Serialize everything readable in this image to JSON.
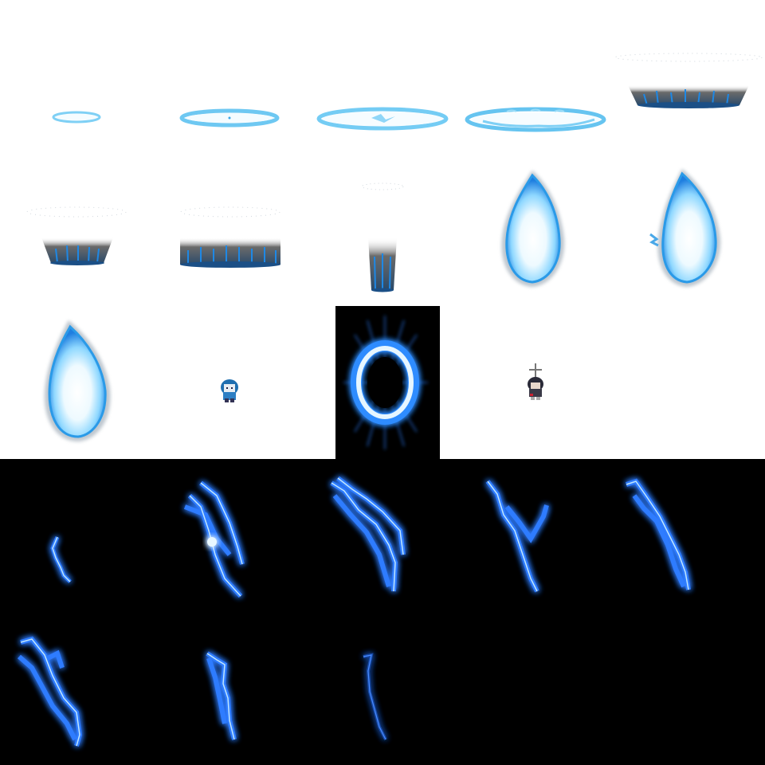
{
  "sheet": {
    "name": "blue-flame-effect-sprite-sheet",
    "colors": {
      "background_top": "#ffffff",
      "background_bottom": "#000000",
      "flame_core": "#f2fbff",
      "flame_mid": "#7fd6ff",
      "flame_edge": "#1a8cff",
      "smoke": "#6b6b6b",
      "lightning": "#2f7bff",
      "lightning_core": "#bfe6ff"
    },
    "frames": [
      {
        "id": "ring-small",
        "icon": "ground-ring-icon"
      },
      {
        "id": "ring-medium",
        "icon": "ground-ring-icon"
      },
      {
        "id": "ring-large",
        "icon": "ground-ring-icon"
      },
      {
        "id": "ring-wide",
        "icon": "ground-ring-icon"
      },
      {
        "id": "pillar-base-wide",
        "icon": "flame-pillar-icon"
      },
      {
        "id": "pillar-base-medium",
        "icon": "flame-pillar-icon"
      },
      {
        "id": "pillar-base-flat",
        "icon": "flame-pillar-icon"
      },
      {
        "id": "pillar-narrow",
        "icon": "flame-pillar-icon"
      },
      {
        "id": "blue-fire-1",
        "icon": "blue-fire-icon"
      },
      {
        "id": "blue-fire-2",
        "icon": "blue-fire-icon"
      },
      {
        "id": "blue-fire-3",
        "icon": "blue-fire-icon"
      },
      {
        "id": "character-sprite-blue-hair",
        "icon": "character-icon"
      },
      {
        "id": "energy-portal",
        "icon": "portal-ring-icon"
      },
      {
        "id": "character-sprite-with-cross",
        "icon": "character-icon"
      },
      {
        "id": "lightning-1",
        "icon": "lightning-icon"
      },
      {
        "id": "lightning-2",
        "icon": "lightning-icon"
      },
      {
        "id": "lightning-3",
        "icon": "lightning-icon"
      },
      {
        "id": "lightning-4",
        "icon": "lightning-icon"
      },
      {
        "id": "lightning-5",
        "icon": "lightning-icon"
      },
      {
        "id": "lightning-6",
        "icon": "lightning-icon"
      },
      {
        "id": "lightning-7",
        "icon": "lightning-icon"
      },
      {
        "id": "lightning-8",
        "icon": "lightning-icon"
      }
    ]
  }
}
